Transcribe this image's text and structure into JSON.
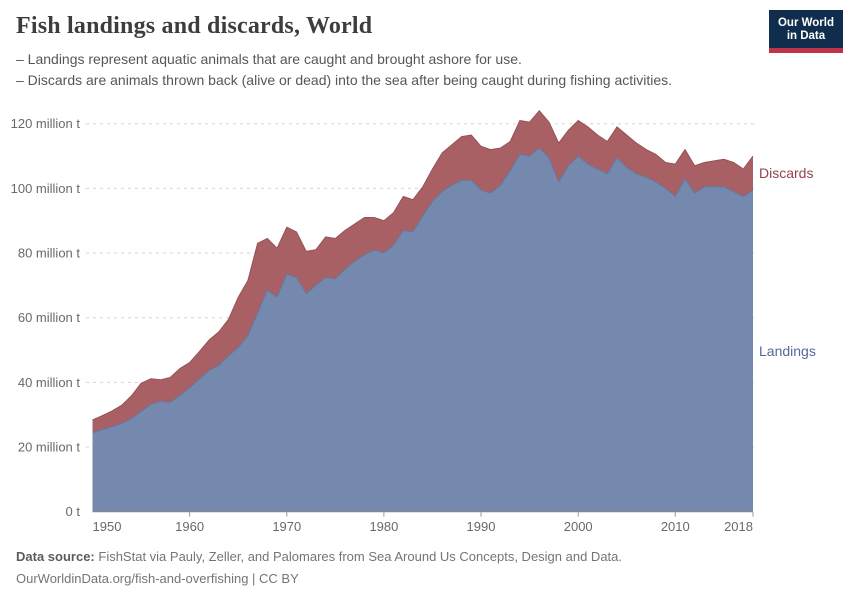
{
  "header": {
    "title": "Fish landings and discards, World",
    "subtitle_lines": [
      "– Landings represent aquatic animals that are caught and brought ashore for use.",
      "– Discards are animals thrown back (alive or dead) into the sea after being caught during fishing activities."
    ],
    "logo": {
      "line1": "Our World",
      "line2": "in Data"
    }
  },
  "chart_data": {
    "type": "area",
    "stacked": true,
    "title": "Fish landings and discards, World",
    "xlabel": "",
    "ylabel": "million tonnes",
    "xlim": [
      1950,
      2018
    ],
    "ylim": [
      0,
      125.7
    ],
    "grid": "horizontal-dashed",
    "legend_position": "right-edge-labels",
    "x": [
      1950,
      1951,
      1952,
      1953,
      1954,
      1955,
      1956,
      1957,
      1958,
      1959,
      1960,
      1961,
      1962,
      1963,
      1964,
      1965,
      1966,
      1967,
      1968,
      1969,
      1970,
      1971,
      1972,
      1973,
      1974,
      1975,
      1976,
      1977,
      1978,
      1979,
      1980,
      1981,
      1982,
      1983,
      1984,
      1985,
      1986,
      1987,
      1988,
      1989,
      1990,
      1991,
      1992,
      1993,
      1994,
      1995,
      1996,
      1997,
      1998,
      1999,
      2000,
      2001,
      2002,
      2003,
      2004,
      2005,
      2006,
      2007,
      2008,
      2009,
      2010,
      2011,
      2012,
      2013,
      2014,
      2015,
      2016,
      2017,
      2018
    ],
    "series": [
      {
        "name": "Landings",
        "unit": "million t",
        "color": "#7588ae",
        "line_color": "#64789f",
        "label_color": "#53699b",
        "values": [
          24.5,
          25.4,
          26.3,
          27.3,
          28.8,
          31.0,
          33.2,
          34.2,
          33.8,
          36.0,
          38.3,
          41.0,
          43.7,
          45.3,
          48.2,
          50.8,
          54.5,
          61.5,
          68.5,
          66.5,
          73.5,
          72.5,
          67.5,
          70.0,
          72.5,
          72.0,
          75.0,
          77.5,
          79.5,
          81.0,
          80.0,
          82.5,
          87.0,
          86.5,
          91.5,
          96.0,
          99.0,
          101.0,
          102.5,
          102.5,
          99.5,
          98.5,
          101.0,
          105.5,
          110.5,
          110.0,
          112.5,
          109.5,
          102.0,
          107.0,
          110.0,
          107.5,
          106.0,
          104.5,
          109.5,
          106.5,
          104.5,
          103.5,
          102.0,
          100.0,
          97.5,
          103.0,
          98.5,
          100.5,
          100.5,
          100.5,
          99.0,
          97.5,
          99.5
        ]
      },
      {
        "name": "Discards",
        "unit": "million t",
        "color": "#a96065",
        "line_color": "#965257",
        "label_color": "#94444c",
        "values": [
          3.9,
          4.3,
          4.8,
          5.6,
          7.0,
          8.7,
          7.9,
          6.6,
          7.7,
          8.3,
          7.8,
          8.5,
          9.4,
          10.3,
          11.3,
          15.5,
          17.0,
          21.5,
          16.0,
          15.0,
          14.5,
          14.0,
          13.0,
          11.0,
          12.5,
          12.5,
          12.0,
          11.5,
          11.5,
          10.0,
          10.0,
          10.0,
          10.5,
          10.0,
          9.0,
          10.0,
          12.0,
          12.5,
          13.5,
          14.0,
          13.5,
          13.5,
          11.5,
          9.0,
          10.5,
          10.5,
          11.5,
          11.0,
          12.0,
          11.0,
          11.0,
          11.5,
          10.5,
          10.0,
          9.5,
          10.0,
          9.5,
          8.5,
          8.5,
          8.0,
          10.0,
          9.0,
          8.5,
          7.5,
          8.0,
          8.5,
          9.0,
          8.5,
          10.5
        ]
      }
    ],
    "y_ticks": [
      {
        "value": 0,
        "label": "0 t"
      },
      {
        "value": 20,
        "label": "20 million t"
      },
      {
        "value": 40,
        "label": "40 million t"
      },
      {
        "value": 60,
        "label": "60 million t"
      },
      {
        "value": 80,
        "label": "80 million t"
      },
      {
        "value": 100,
        "label": "100 million t"
      },
      {
        "value": 120,
        "label": "120 million t"
      }
    ],
    "x_ticks": [
      {
        "value": 1950,
        "label": "1950"
      },
      {
        "value": 1960,
        "label": "1960"
      },
      {
        "value": 1970,
        "label": "1970"
      },
      {
        "value": 1980,
        "label": "1980"
      },
      {
        "value": 1990,
        "label": "1990"
      },
      {
        "value": 2000,
        "label": "2000"
      },
      {
        "value": 2010,
        "label": "2010"
      },
      {
        "value": 2018,
        "label": "2018"
      }
    ]
  },
  "footer": {
    "source_label": "Data source:",
    "source_text": "FishStat via Pauly, Zeller, and Palomares from Sea Around Us Concepts, Design and Data.",
    "license_line": "OurWorldinData.org/fish-and-overfishing | CC BY"
  }
}
